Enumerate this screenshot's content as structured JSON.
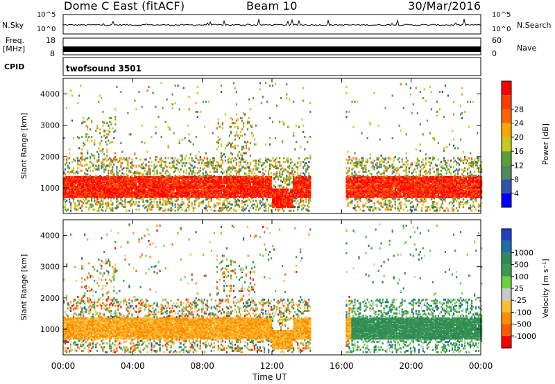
{
  "header": {
    "station": "Dome C East (fitACF)",
    "beam": "Beam 10",
    "date": "30/Mar/2016"
  },
  "panels": {
    "nsky_label": "N.Sky",
    "nsearch_label": "N.Search",
    "noise_tick_top": "10^5",
    "noise_tick_bottom": "10^0",
    "freq_label_1": "Freq.",
    "freq_label_2": "[MHz]",
    "freq_tick_top": "18",
    "freq_tick_bottom": "8",
    "nave_label": "Nave",
    "nave_tick_top": "60",
    "nave_tick_bottom": "0",
    "cpid_label": "CPID",
    "cpid_value": "twofsound 3501"
  },
  "colors": {
    "power_scale": [
      "#0000ff",
      "#2e56a8",
      "#4d8a5c",
      "#5aa032",
      "#c8c820",
      "#ffa500",
      "#ff6400",
      "#ff3c00",
      "#ff0000"
    ],
    "velocity_scale": [
      "#ff0000",
      "#ff5a00",
      "#ff8c00",
      "#ffbe32",
      "#c8c8c8",
      "#6ad23c",
      "#3c9a50",
      "#2e8b57",
      "#1e6eaa",
      "#2040c0"
    ]
  },
  "chart_data": [
    {
      "type": "heatmap",
      "name": "power",
      "ylabel": "Slant Range [km]",
      "xlabel": "Time UT",
      "x_ticks": [
        "00:00",
        "04:00",
        "08:00",
        "12:00",
        "16:00",
        "20:00",
        "00:00"
      ],
      "xlim_hours": [
        0,
        24
      ],
      "ylim_km": [
        180,
        4500
      ],
      "y_ticks": [
        1000,
        2000,
        3000,
        4000
      ],
      "colorbar_label": "Power [dB]",
      "colorbar_ticks": [
        4,
        8,
        12,
        16,
        20,
        24,
        28
      ],
      "gap_hours": [
        14.2,
        16.2
      ]
    },
    {
      "type": "heatmap",
      "name": "velocity",
      "ylabel": "Slant Range [km]",
      "xlabel": "Time UT",
      "x_ticks": [
        "00:00",
        "04:00",
        "08:00",
        "12:00",
        "16:00",
        "20:00",
        "00:00"
      ],
      "xlim_hours": [
        0,
        24
      ],
      "ylim_km": [
        180,
        4500
      ],
      "y_ticks": [
        1000,
        2000,
        3000,
        4000
      ],
      "colorbar_label": "Velocity [m s⁻¹]",
      "colorbar_ticks": [
        "1000",
        "500",
        "100",
        "25",
        "-25",
        "-100",
        "-500",
        "-1000"
      ]
    }
  ],
  "xaxis_title": "Time UT"
}
